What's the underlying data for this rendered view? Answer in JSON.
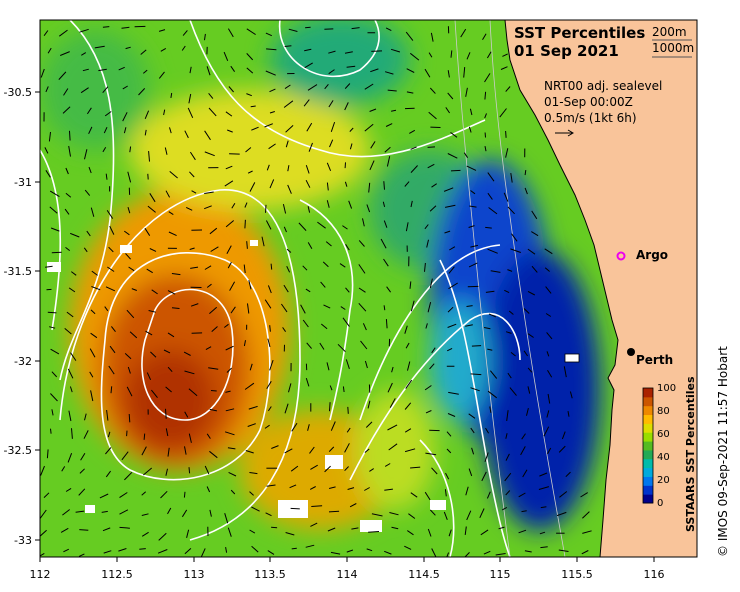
{
  "title": {
    "line1": "SST Percentiles",
    "line2": "01 Sep 2021"
  },
  "contour_legend": {
    "shallow": "200m",
    "deep": "1000m"
  },
  "current_info": {
    "line1": "NRT00 adj. sealevel",
    "line2": "01-Sep 00:00Z",
    "line3": "0.5m/s (1kt 6h)"
  },
  "axes": {
    "x_ticks": [
      "112",
      "112.5",
      "113",
      "113.5",
      "114",
      "114.5",
      "115",
      "115.5",
      "116"
    ],
    "y_ticks": [
      "-30.5",
      "-31",
      "-31.5",
      "-32",
      "-32.5",
      "-33"
    ]
  },
  "locations": [
    {
      "name": "Argo",
      "lon": 115.8,
      "lat": -31.45
    },
    {
      "name": "Perth",
      "lon": 115.86,
      "lat": -31.95
    }
  ],
  "colorbar": {
    "label": "SSTAARS SST Percentiles",
    "ticks": [
      "0",
      "20",
      "40",
      "60",
      "80",
      "100"
    ],
    "colors": [
      "#00008b",
      "#0033cc",
      "#0077ee",
      "#00aadd",
      "#00bbaa",
      "#22aa55",
      "#55bb22",
      "#99dd00",
      "#dddd00",
      "#ffbb00",
      "#ee8800",
      "#cc5500",
      "#aa2200"
    ]
  },
  "credit": "© IMOS 09-Sep-2021 11:57 Hobart",
  "colors": {
    "land": "#f9c49a",
    "contour": "#ffffff",
    "argo": "#ee00ee"
  }
}
